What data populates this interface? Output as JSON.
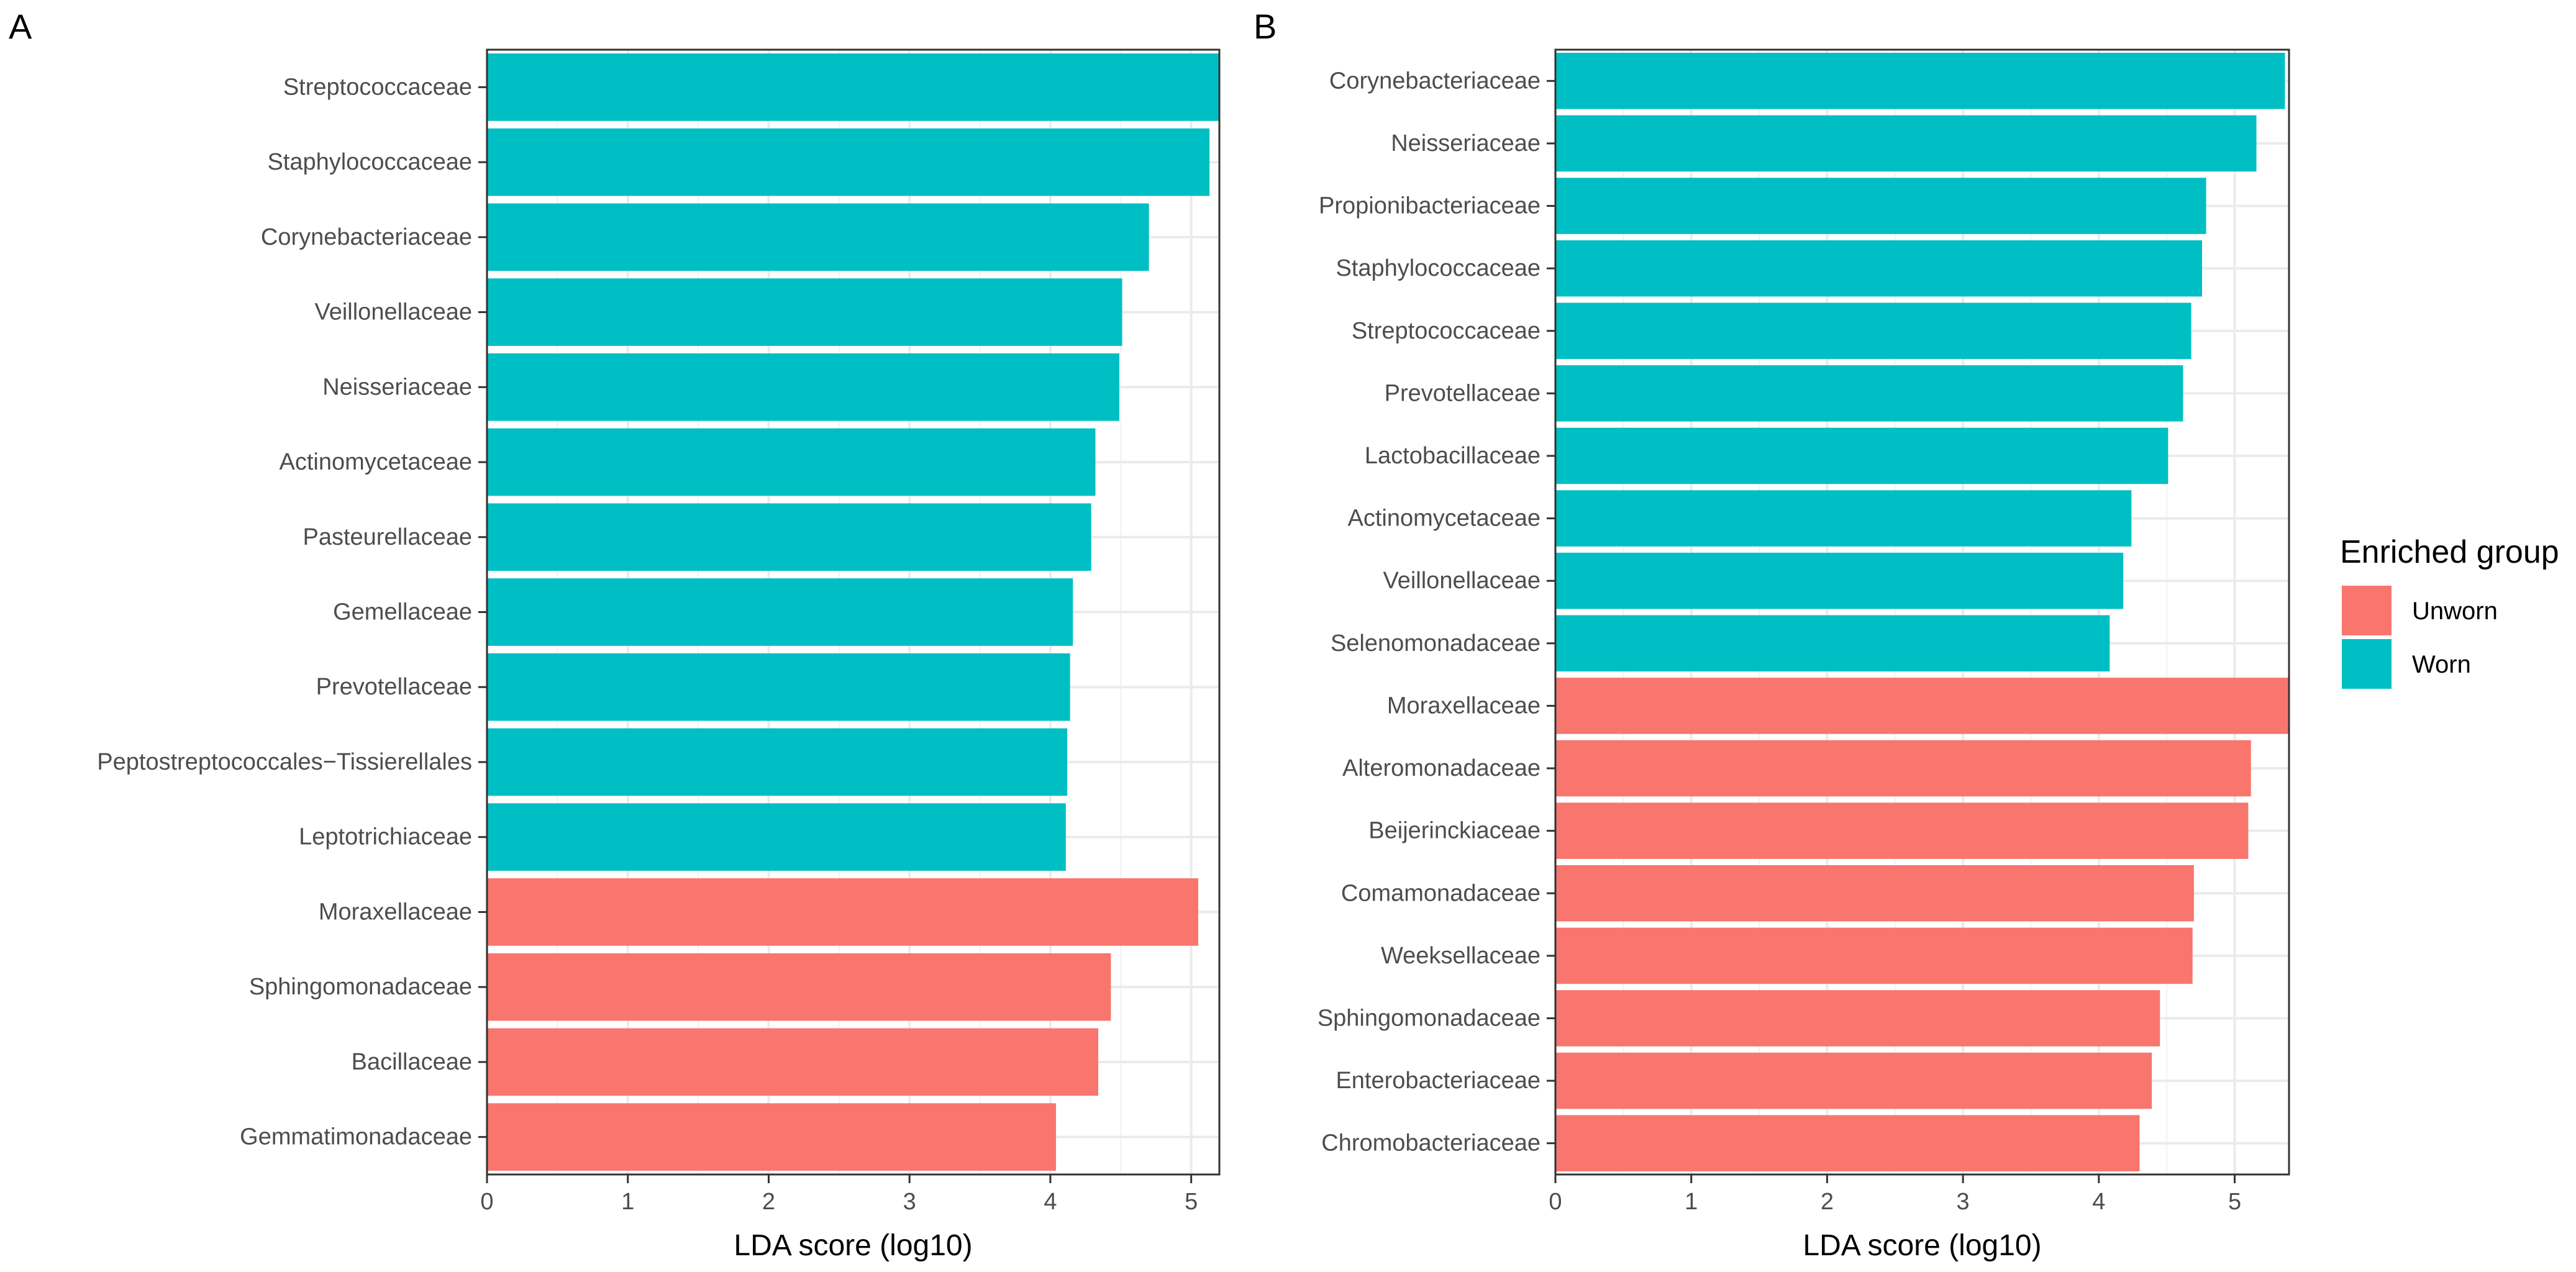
{
  "chart_data": [
    {
      "type": "bar",
      "orientation": "horizontal",
      "panel": "A",
      "xlabel": "LDA score (log10)",
      "ylabel": "",
      "xlim": [
        0,
        5.2
      ],
      "xticks": [
        0,
        1,
        2,
        3,
        4,
        5
      ],
      "grid": true,
      "categories": [
        "Streptococcaceae",
        "Staphylococcaceae",
        "Corynebacteriaceae",
        "Veillonellaceae",
        "Neisseriaceae",
        "Actinomycetaceae",
        "Pasteurellaceae",
        "Gemellaceae",
        "Prevotellaceae",
        "Peptostreptococcales−Tissierellales",
        "Leptotrichiaceae",
        "Moraxellaceae",
        "Sphingomonadaceae",
        "Bacillaceae",
        "Gemmatimonadaceae"
      ],
      "values": [
        5.21,
        5.13,
        4.7,
        4.51,
        4.49,
        4.32,
        4.29,
        4.16,
        4.14,
        4.12,
        4.11,
        5.05,
        4.43,
        4.34,
        4.04
      ],
      "groups": [
        "Worn",
        "Worn",
        "Worn",
        "Worn",
        "Worn",
        "Worn",
        "Worn",
        "Worn",
        "Worn",
        "Worn",
        "Worn",
        "Unworn",
        "Unworn",
        "Unworn",
        "Unworn"
      ]
    },
    {
      "type": "bar",
      "orientation": "horizontal",
      "panel": "B",
      "xlabel": "LDA score (log10)",
      "ylabel": "",
      "xlim": [
        0,
        5.4
      ],
      "xticks": [
        0,
        1,
        2,
        3,
        4,
        5
      ],
      "grid": true,
      "categories": [
        "Corynebacteriaceae",
        "Neisseriaceae",
        "Propionibacteriaceae",
        "Staphylococcaceae",
        "Streptococcaceae",
        "Prevotellaceae",
        "Lactobacillaceae",
        "Actinomycetaceae",
        "Veillonellaceae",
        "Selenomonadaceae",
        "Moraxellaceae",
        "Alteromonadaceae",
        "Beijerinckiaceae",
        "Comamonadaceae",
        "Weeksellaceae",
        "Sphingomonadaceae",
        "Enterobacteriaceae",
        "Chromobacteriaceae"
      ],
      "values": [
        5.37,
        5.16,
        4.79,
        4.76,
        4.68,
        4.62,
        4.51,
        4.24,
        4.18,
        4.08,
        5.4,
        5.12,
        5.1,
        4.7,
        4.69,
        4.45,
        4.39,
        4.3
      ],
      "groups": [
        "Worn",
        "Worn",
        "Worn",
        "Worn",
        "Worn",
        "Worn",
        "Worn",
        "Worn",
        "Worn",
        "Worn",
        "Unworn",
        "Unworn",
        "Unworn",
        "Unworn",
        "Unworn",
        "Unworn",
        "Unworn",
        "Unworn"
      ]
    }
  ],
  "legend": {
    "title": "Enriched group",
    "placement": "right",
    "items": [
      {
        "label": "Unworn",
        "color": "#f8766d"
      },
      {
        "label": "Worn",
        "color": "#00bfc4"
      }
    ]
  }
}
